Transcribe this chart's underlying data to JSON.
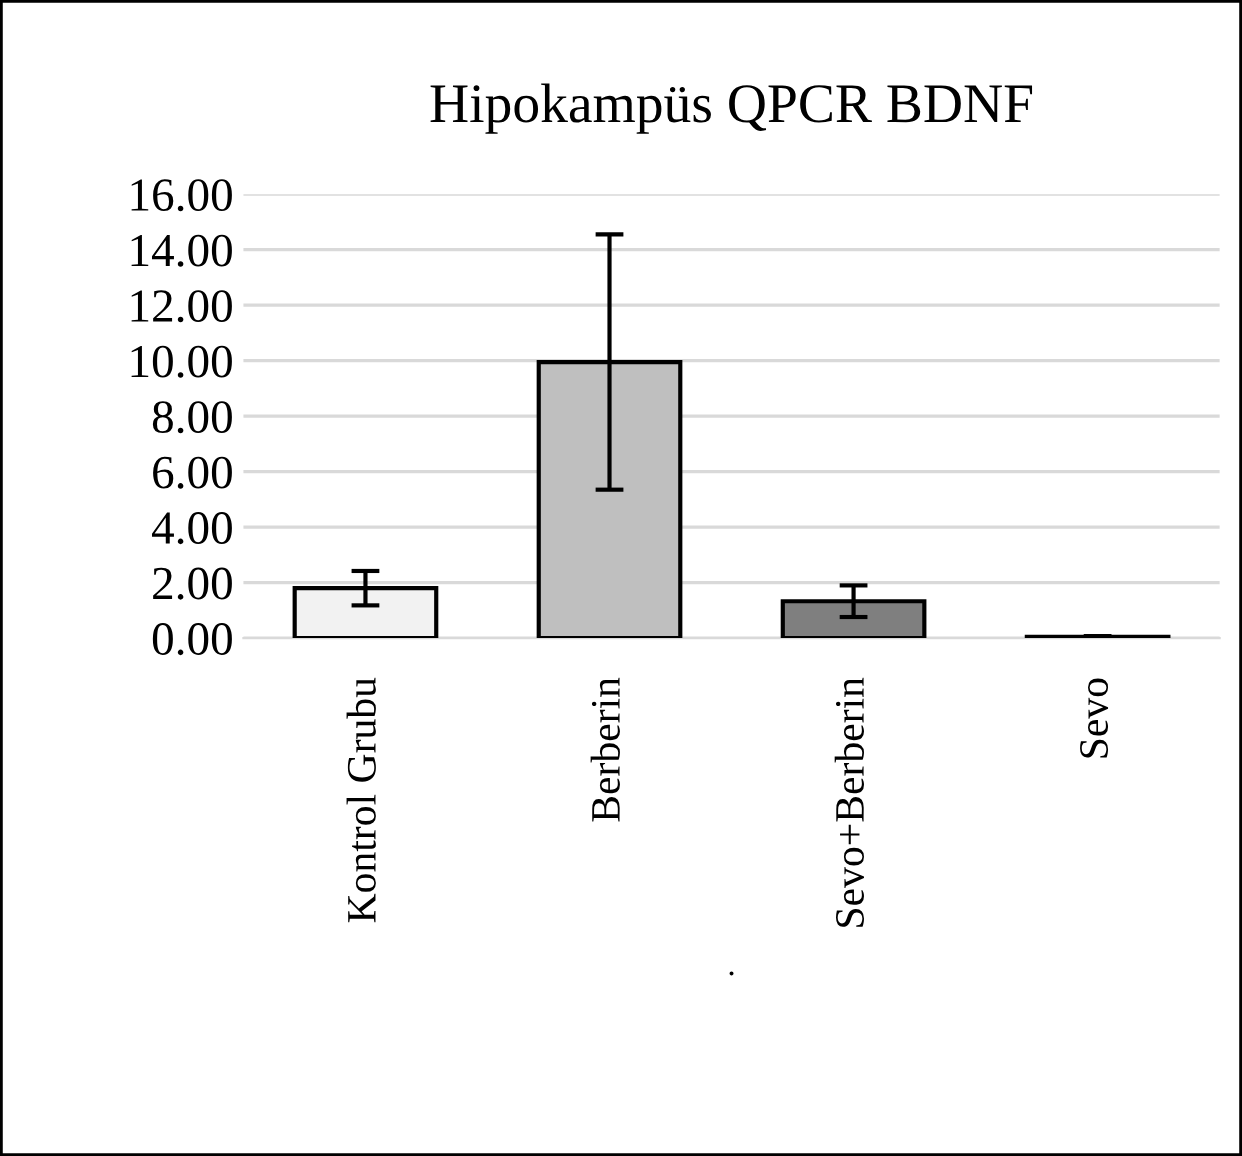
{
  "chart_data": {
    "type": "bar",
    "title": "Hipokampüs QPCR BDNF",
    "xlabel": ".",
    "categories": [
      "Kontrol Grubu",
      "Berberin",
      "Sevo+Berberin",
      "Sevo"
    ],
    "values": [
      1.8,
      9.95,
      1.33,
      0.05
    ],
    "errors": [
      0.62,
      4.6,
      0.57,
      0.02
    ],
    "colors": [
      "#f2f2f2",
      "#bfbfbf",
      "#7f7f7f",
      "#a6a6a6"
    ],
    "ylim": [
      0,
      16
    ],
    "yticks": [
      {
        "value": 0,
        "label": "0.00"
      },
      {
        "value": 2,
        "label": "2.00"
      },
      {
        "value": 4,
        "label": "4.00"
      },
      {
        "value": 6,
        "label": "6.00"
      },
      {
        "value": 8,
        "label": "8.00"
      },
      {
        "value": 10,
        "label": "10.00"
      },
      {
        "value": 12,
        "label": "12.00"
      },
      {
        "value": 14,
        "label": "14.00"
      },
      {
        "value": 16,
        "label": "16.00"
      }
    ],
    "grid": "y",
    "legend": false
  }
}
